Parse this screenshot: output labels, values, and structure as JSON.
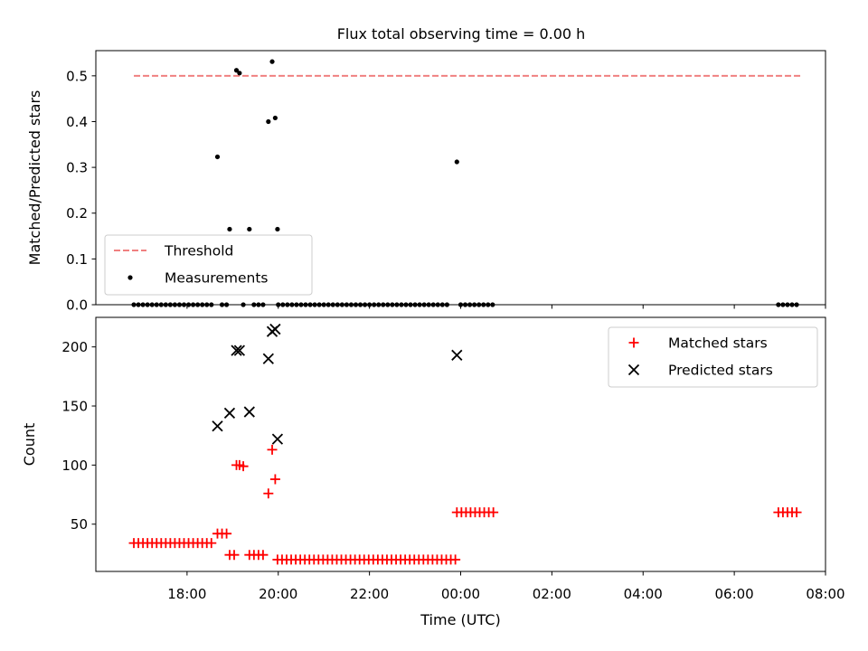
{
  "figure": {
    "title": "Flux total observing time = 0.00 h"
  },
  "chart_data": [
    {
      "type": "scatter",
      "panel": "top",
      "title": "Flux total observing time = 0.00 h",
      "xlabel": "",
      "ylabel": "Matched/Predicted stars",
      "xlim": [
        "16:00",
        "08:00"
      ],
      "ylim": [
        0,
        0.555
      ],
      "yticks": [
        "0.0",
        "0.1",
        "0.2",
        "0.3",
        "0.4",
        "0.5"
      ],
      "xticks": [
        "18:00",
        "20:00",
        "22:00",
        "00:00",
        "02:00",
        "04:00",
        "06:00",
        "08:00"
      ],
      "legend_position": "lower-left",
      "series": [
        {
          "name": "Threshold",
          "kind": "dashed-line",
          "color": "#f08080",
          "points": [
            {
              "time": "16:50",
              "value": 0.5
            },
            {
              "time": "07:30",
              "value": 0.5
            }
          ]
        },
        {
          "name": "Measurements",
          "kind": "dots",
          "color": "#000000",
          "points": [
            {
              "time": "18:40",
              "value": 0.323
            },
            {
              "time": "18:56",
              "value": 0.165
            },
            {
              "time": "19:05",
              "value": 0.512
            },
            {
              "time": "19:09",
              "value": 0.506
            },
            {
              "time": "19:22",
              "value": 0.165
            },
            {
              "time": "19:47",
              "value": 0.4
            },
            {
              "time": "19:52",
              "value": 0.531
            },
            {
              "time": "19:56",
              "value": 0.408
            },
            {
              "time": "19:59",
              "value": 0.165
            },
            {
              "time": "23:55",
              "value": 0.312
            },
            {
              "time": "16:50",
              "value": 0
            },
            {
              "time": "16:56",
              "value": 0
            },
            {
              "time": "17:02",
              "value": 0
            },
            {
              "time": "17:08",
              "value": 0
            },
            {
              "time": "17:14",
              "value": 0
            },
            {
              "time": "17:20",
              "value": 0
            },
            {
              "time": "17:26",
              "value": 0
            },
            {
              "time": "17:32",
              "value": 0
            },
            {
              "time": "17:38",
              "value": 0
            },
            {
              "time": "17:44",
              "value": 0
            },
            {
              "time": "17:50",
              "value": 0
            },
            {
              "time": "17:56",
              "value": 0
            },
            {
              "time": "18:02",
              "value": 0
            },
            {
              "time": "18:08",
              "value": 0
            },
            {
              "time": "18:14",
              "value": 0
            },
            {
              "time": "18:20",
              "value": 0
            },
            {
              "time": "18:26",
              "value": 0
            },
            {
              "time": "18:32",
              "value": 0
            },
            {
              "time": "18:46",
              "value": 0
            },
            {
              "time": "18:52",
              "value": 0
            },
            {
              "time": "19:14",
              "value": 0
            },
            {
              "time": "19:28",
              "value": 0
            },
            {
              "time": "19:34",
              "value": 0
            },
            {
              "time": "19:40",
              "value": 0
            },
            {
              "time": "20:00",
              "value": 0
            },
            {
              "time": "20:06",
              "value": 0
            },
            {
              "time": "20:12",
              "value": 0
            },
            {
              "time": "20:18",
              "value": 0
            },
            {
              "time": "20:24",
              "value": 0
            },
            {
              "time": "20:30",
              "value": 0
            },
            {
              "time": "20:36",
              "value": 0
            },
            {
              "time": "20:42",
              "value": 0
            },
            {
              "time": "20:48",
              "value": 0
            },
            {
              "time": "20:54",
              "value": 0
            },
            {
              "time": "21:00",
              "value": 0
            },
            {
              "time": "21:06",
              "value": 0
            },
            {
              "time": "21:12",
              "value": 0
            },
            {
              "time": "21:18",
              "value": 0
            },
            {
              "time": "21:24",
              "value": 0
            },
            {
              "time": "21:30",
              "value": 0
            },
            {
              "time": "21:36",
              "value": 0
            },
            {
              "time": "21:42",
              "value": 0
            },
            {
              "time": "21:48",
              "value": 0
            },
            {
              "time": "21:54",
              "value": 0
            },
            {
              "time": "22:00",
              "value": 0
            },
            {
              "time": "22:06",
              "value": 0
            },
            {
              "time": "22:12",
              "value": 0
            },
            {
              "time": "22:18",
              "value": 0
            },
            {
              "time": "22:24",
              "value": 0
            },
            {
              "time": "22:30",
              "value": 0
            },
            {
              "time": "22:36",
              "value": 0
            },
            {
              "time": "22:42",
              "value": 0
            },
            {
              "time": "22:48",
              "value": 0
            },
            {
              "time": "22:54",
              "value": 0
            },
            {
              "time": "23:00",
              "value": 0
            },
            {
              "time": "23:06",
              "value": 0
            },
            {
              "time": "23:12",
              "value": 0
            },
            {
              "time": "23:18",
              "value": 0
            },
            {
              "time": "23:24",
              "value": 0
            },
            {
              "time": "23:30",
              "value": 0
            },
            {
              "time": "23:36",
              "value": 0
            },
            {
              "time": "23:42",
              "value": 0
            },
            {
              "time": "00:00",
              "value": 0
            },
            {
              "time": "00:06",
              "value": 0
            },
            {
              "time": "00:12",
              "value": 0
            },
            {
              "time": "00:18",
              "value": 0
            },
            {
              "time": "00:24",
              "value": 0
            },
            {
              "time": "00:30",
              "value": 0
            },
            {
              "time": "00:36",
              "value": 0
            },
            {
              "time": "00:42",
              "value": 0
            },
            {
              "time": "06:58",
              "value": 0
            },
            {
              "time": "07:04",
              "value": 0
            },
            {
              "time": "07:10",
              "value": 0
            },
            {
              "time": "07:16",
              "value": 0
            },
            {
              "time": "07:22",
              "value": 0
            }
          ]
        }
      ]
    },
    {
      "type": "scatter",
      "panel": "bottom",
      "title": "",
      "xlabel": "Time (UTC)",
      "ylabel": "Count",
      "xlim": [
        "16:00",
        "08:00"
      ],
      "ylim": [
        10,
        225
      ],
      "yticks": [
        "50",
        "100",
        "150",
        "200"
      ],
      "xticks": [
        "18:00",
        "20:00",
        "22:00",
        "00:00",
        "02:00",
        "04:00",
        "06:00",
        "08:00"
      ],
      "legend_position": "upper-right",
      "series": [
        {
          "name": "Matched stars",
          "kind": "plus",
          "color": "#ff0000",
          "points": [
            {
              "time": "16:50",
              "value": 34
            },
            {
              "time": "16:56",
              "value": 34
            },
            {
              "time": "17:02",
              "value": 34
            },
            {
              "time": "17:08",
              "value": 34
            },
            {
              "time": "17:14",
              "value": 34
            },
            {
              "time": "17:20",
              "value": 34
            },
            {
              "time": "17:26",
              "value": 34
            },
            {
              "time": "17:32",
              "value": 34
            },
            {
              "time": "17:38",
              "value": 34
            },
            {
              "time": "17:44",
              "value": 34
            },
            {
              "time": "17:50",
              "value": 34
            },
            {
              "time": "17:56",
              "value": 34
            },
            {
              "time": "18:02",
              "value": 34
            },
            {
              "time": "18:08",
              "value": 34
            },
            {
              "time": "18:14",
              "value": 34
            },
            {
              "time": "18:20",
              "value": 34
            },
            {
              "time": "18:26",
              "value": 34
            },
            {
              "time": "18:32",
              "value": 34
            },
            {
              "time": "18:40",
              "value": 42
            },
            {
              "time": "18:46",
              "value": 42
            },
            {
              "time": "18:52",
              "value": 42
            },
            {
              "time": "18:56",
              "value": 24
            },
            {
              "time": "19:02",
              "value": 24
            },
            {
              "time": "19:05",
              "value": 100
            },
            {
              "time": "19:09",
              "value": 100
            },
            {
              "time": "19:14",
              "value": 99
            },
            {
              "time": "19:22",
              "value": 24
            },
            {
              "time": "19:28",
              "value": 24
            },
            {
              "time": "19:34",
              "value": 24
            },
            {
              "time": "19:40",
              "value": 24
            },
            {
              "time": "19:47",
              "value": 76
            },
            {
              "time": "19:52",
              "value": 113
            },
            {
              "time": "19:56",
              "value": 88
            },
            {
              "time": "19:59",
              "value": 20
            },
            {
              "time": "20:05",
              "value": 20
            },
            {
              "time": "20:11",
              "value": 20
            },
            {
              "time": "20:17",
              "value": 20
            },
            {
              "time": "20:23",
              "value": 20
            },
            {
              "time": "20:29",
              "value": 20
            },
            {
              "time": "20:35",
              "value": 20
            },
            {
              "time": "20:41",
              "value": 20
            },
            {
              "time": "20:47",
              "value": 20
            },
            {
              "time": "20:53",
              "value": 20
            },
            {
              "time": "20:59",
              "value": 20
            },
            {
              "time": "21:05",
              "value": 20
            },
            {
              "time": "21:11",
              "value": 20
            },
            {
              "time": "21:17",
              "value": 20
            },
            {
              "time": "21:23",
              "value": 20
            },
            {
              "time": "21:29",
              "value": 20
            },
            {
              "time": "21:35",
              "value": 20
            },
            {
              "time": "21:41",
              "value": 20
            },
            {
              "time": "21:47",
              "value": 20
            },
            {
              "time": "21:53",
              "value": 20
            },
            {
              "time": "21:59",
              "value": 20
            },
            {
              "time": "22:05",
              "value": 20
            },
            {
              "time": "22:11",
              "value": 20
            },
            {
              "time": "22:17",
              "value": 20
            },
            {
              "time": "22:23",
              "value": 20
            },
            {
              "time": "22:29",
              "value": 20
            },
            {
              "time": "22:35",
              "value": 20
            },
            {
              "time": "22:41",
              "value": 20
            },
            {
              "time": "22:47",
              "value": 20
            },
            {
              "time": "22:53",
              "value": 20
            },
            {
              "time": "22:59",
              "value": 20
            },
            {
              "time": "23:05",
              "value": 20
            },
            {
              "time": "23:11",
              "value": 20
            },
            {
              "time": "23:17",
              "value": 20
            },
            {
              "time": "23:23",
              "value": 20
            },
            {
              "time": "23:29",
              "value": 20
            },
            {
              "time": "23:35",
              "value": 20
            },
            {
              "time": "23:41",
              "value": 20
            },
            {
              "time": "23:47",
              "value": 20
            },
            {
              "time": "23:53",
              "value": 20
            },
            {
              "time": "23:55",
              "value": 60
            },
            {
              "time": "00:01",
              "value": 60
            },
            {
              "time": "00:07",
              "value": 60
            },
            {
              "time": "00:13",
              "value": 60
            },
            {
              "time": "00:19",
              "value": 60
            },
            {
              "time": "00:25",
              "value": 60
            },
            {
              "time": "00:31",
              "value": 60
            },
            {
              "time": "00:37",
              "value": 60
            },
            {
              "time": "00:43",
              "value": 60
            },
            {
              "time": "06:58",
              "value": 60
            },
            {
              "time": "07:04",
              "value": 60
            },
            {
              "time": "07:10",
              "value": 60
            },
            {
              "time": "07:16",
              "value": 60
            },
            {
              "time": "07:22",
              "value": 60
            }
          ]
        },
        {
          "name": "Predicted stars",
          "kind": "cross",
          "color": "#000000",
          "points": [
            {
              "time": "18:40",
              "value": 133
            },
            {
              "time": "18:56",
              "value": 144
            },
            {
              "time": "19:05",
              "value": 197
            },
            {
              "time": "19:09",
              "value": 197
            },
            {
              "time": "19:22",
              "value": 145
            },
            {
              "time": "19:47",
              "value": 190
            },
            {
              "time": "19:52",
              "value": 213
            },
            {
              "time": "19:56",
              "value": 215
            },
            {
              "time": "19:59",
              "value": 122
            },
            {
              "time": "23:55",
              "value": 193
            }
          ]
        }
      ]
    }
  ]
}
